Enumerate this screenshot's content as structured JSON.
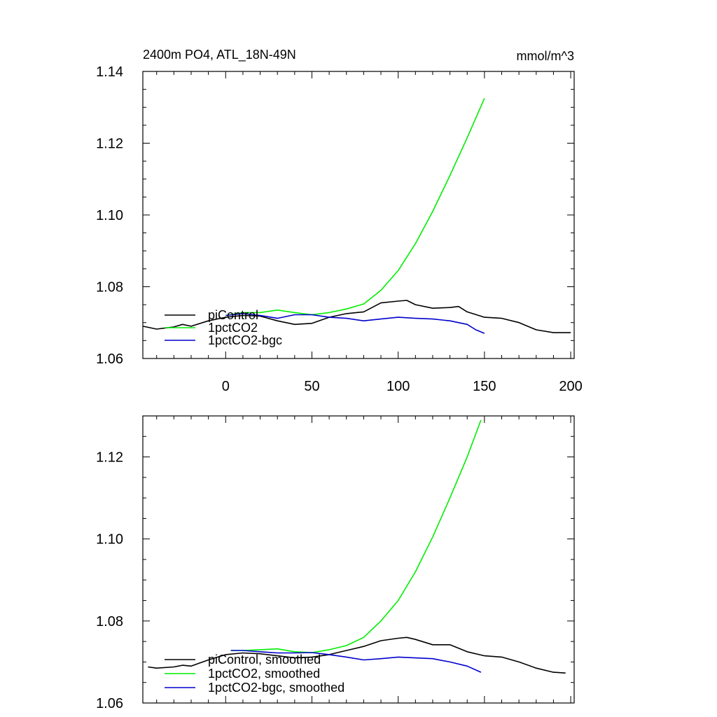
{
  "chart_data": [
    {
      "type": "line",
      "title": "2400m PO4, ATL_18N-49N",
      "units": "mmol/m^3",
      "xlim": [
        -48,
        202
      ],
      "ylim": [
        1.06,
        1.14
      ],
      "xticks": [
        0,
        50,
        100,
        150,
        200
      ],
      "xtick_labels": [
        "0",
        "50",
        "100",
        "150",
        "200"
      ],
      "yticks": [
        1.06,
        1.08,
        1.1,
        1.12,
        1.14
      ],
      "ytick_labels": [
        "1.06",
        "1.08",
        "1.10",
        "1.12",
        "1.14"
      ],
      "grid": false,
      "legend_position": "bottom-left",
      "series": [
        {
          "name": "piControl",
          "color": "#000000",
          "x": [
            -48,
            -40,
            -30,
            -25,
            -20,
            -10,
            0,
            10,
            20,
            30,
            40,
            50,
            60,
            70,
            80,
            90,
            100,
            105,
            110,
            120,
            130,
            135,
            140,
            150,
            160,
            170,
            180,
            190,
            200
          ],
          "y": [
            1.069,
            1.0682,
            1.0688,
            1.0695,
            1.069,
            1.0705,
            1.0715,
            1.072,
            1.0718,
            1.0705,
            1.0695,
            1.0698,
            1.0715,
            1.0725,
            1.073,
            1.0755,
            1.076,
            1.0762,
            1.075,
            1.074,
            1.0742,
            1.0745,
            1.073,
            1.0715,
            1.0712,
            1.07,
            1.068,
            1.0672,
            1.0672
          ]
        },
        {
          "name": "1pctCO2",
          "color": "#00ee00",
          "x": [
            0,
            10,
            20,
            30,
            40,
            50,
            60,
            70,
            80,
            90,
            100,
            110,
            120,
            130,
            140,
            150
          ],
          "y": [
            1.072,
            1.0728,
            1.0728,
            1.0735,
            1.0728,
            1.0722,
            1.0728,
            1.0738,
            1.0752,
            1.079,
            1.0845,
            1.092,
            1.101,
            1.111,
            1.1215,
            1.1325
          ]
        },
        {
          "name": "1pctCO2-bgc",
          "color": "#0000cc",
          "x": [
            0,
            10,
            20,
            30,
            40,
            50,
            60,
            70,
            80,
            90,
            100,
            110,
            120,
            130,
            140,
            145,
            150
          ],
          "y": [
            1.072,
            1.0725,
            1.072,
            1.0712,
            1.0722,
            1.0722,
            1.0715,
            1.0712,
            1.0705,
            1.071,
            1.0715,
            1.0712,
            1.071,
            1.0705,
            1.0695,
            1.068,
            1.067
          ]
        }
      ]
    },
    {
      "type": "line",
      "title": "",
      "units": "",
      "xlim": [
        -48,
        202
      ],
      "ylim": [
        1.06,
        1.13
      ],
      "xticks": [
        0,
        50,
        100,
        150,
        200
      ],
      "yticks": [
        1.06,
        1.08,
        1.1,
        1.12
      ],
      "ytick_labels": [
        "1.06",
        "1.08",
        "1.10",
        "1.12"
      ],
      "grid": false,
      "legend_position": "bottom-left",
      "series": [
        {
          "name": "piControl, smoothed",
          "color": "#000000",
          "x": [
            -45,
            -40,
            -30,
            -25,
            -20,
            -10,
            0,
            10,
            20,
            30,
            40,
            50,
            60,
            70,
            80,
            90,
            100,
            105,
            110,
            120,
            130,
            140,
            150,
            160,
            170,
            180,
            190,
            197
          ],
          "y": [
            1.0688,
            1.0685,
            1.0688,
            1.0692,
            1.069,
            1.0705,
            1.0718,
            1.0722,
            1.072,
            1.0715,
            1.071,
            1.0712,
            1.0718,
            1.0728,
            1.0738,
            1.0752,
            1.0758,
            1.076,
            1.0755,
            1.0742,
            1.0742,
            1.0725,
            1.0715,
            1.0712,
            1.07,
            1.0685,
            1.0675,
            1.0673
          ]
        },
        {
          "name": "1pctCO2, smoothed",
          "color": "#00ee00",
          "x": [
            3,
            10,
            20,
            30,
            40,
            50,
            60,
            70,
            80,
            90,
            100,
            110,
            120,
            130,
            140,
            148
          ],
          "y": [
            1.0728,
            1.0728,
            1.073,
            1.0732,
            1.0725,
            1.0723,
            1.073,
            1.074,
            1.076,
            1.08,
            1.085,
            1.092,
            1.1005,
            1.11,
            1.12,
            1.129
          ]
        },
        {
          "name": "1pctCO2-bgc, smoothed",
          "color": "#0000cc",
          "x": [
            3,
            10,
            20,
            30,
            40,
            50,
            60,
            70,
            80,
            90,
            100,
            110,
            120,
            130,
            140,
            148
          ],
          "y": [
            1.0728,
            1.0728,
            1.0725,
            1.0722,
            1.0722,
            1.0723,
            1.0718,
            1.0712,
            1.0705,
            1.0708,
            1.0712,
            1.071,
            1.0708,
            1.07,
            1.069,
            1.0675
          ]
        }
      ]
    }
  ]
}
